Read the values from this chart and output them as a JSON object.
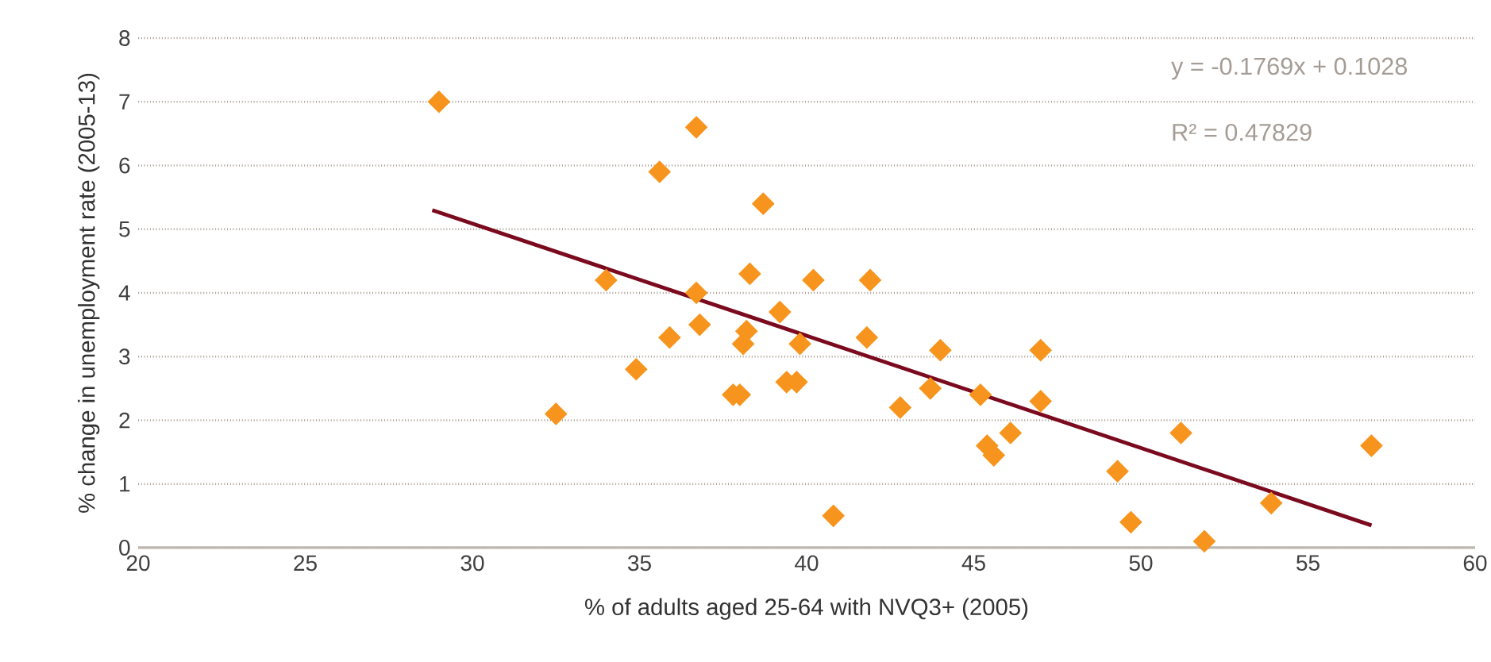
{
  "chart_data": {
    "type": "scatter",
    "xlabel": "% of adults aged 25-64 with NVQ3+ (2005)",
    "ylabel": "% change in unemployment rate (2005-13)",
    "xlim": [
      20,
      60
    ],
    "xticks": [
      20,
      25,
      30,
      35,
      40,
      45,
      50,
      55,
      60
    ],
    "ylim": [
      0,
      8
    ],
    "yticks": [
      0,
      1,
      2,
      3,
      4,
      5,
      6,
      7,
      8
    ],
    "grid": "y",
    "annotations": [
      "y = -0.1769x + 0.1028",
      "R² = 0.47829"
    ],
    "series": [
      {
        "marker": "diamond",
        "color": "#f7941d",
        "x": [
          29.0,
          32.5,
          34.0,
          34.9,
          35.6,
          35.9,
          36.7,
          36.7,
          36.8,
          37.8,
          38.0,
          38.1,
          38.2,
          38.3,
          38.7,
          39.2,
          39.4,
          39.7,
          39.8,
          40.2,
          40.8,
          41.8,
          41.9,
          42.8,
          43.7,
          44.0,
          45.2,
          45.4,
          45.6,
          46.1,
          47.0,
          47.0,
          49.3,
          49.7,
          51.2,
          51.9,
          53.9,
          56.9
        ],
        "values": [
          7.0,
          2.1,
          4.2,
          2.8,
          5.9,
          3.3,
          6.6,
          4.0,
          3.5,
          2.4,
          2.4,
          3.2,
          3.4,
          4.3,
          5.4,
          3.7,
          2.6,
          2.6,
          3.2,
          4.2,
          0.5,
          3.3,
          4.2,
          2.2,
          2.5,
          3.1,
          2.4,
          1.6,
          1.45,
          1.8,
          3.1,
          2.3,
          1.2,
          0.4,
          1.8,
          0.1,
          0.7,
          1.6
        ]
      },
      {
        "type": "line",
        "marker": "none",
        "line_style": "solid",
        "color": "#7b0a1f",
        "x": [
          28.8,
          56.9
        ],
        "values": [
          5.3,
          0.35
        ]
      }
    ]
  }
}
